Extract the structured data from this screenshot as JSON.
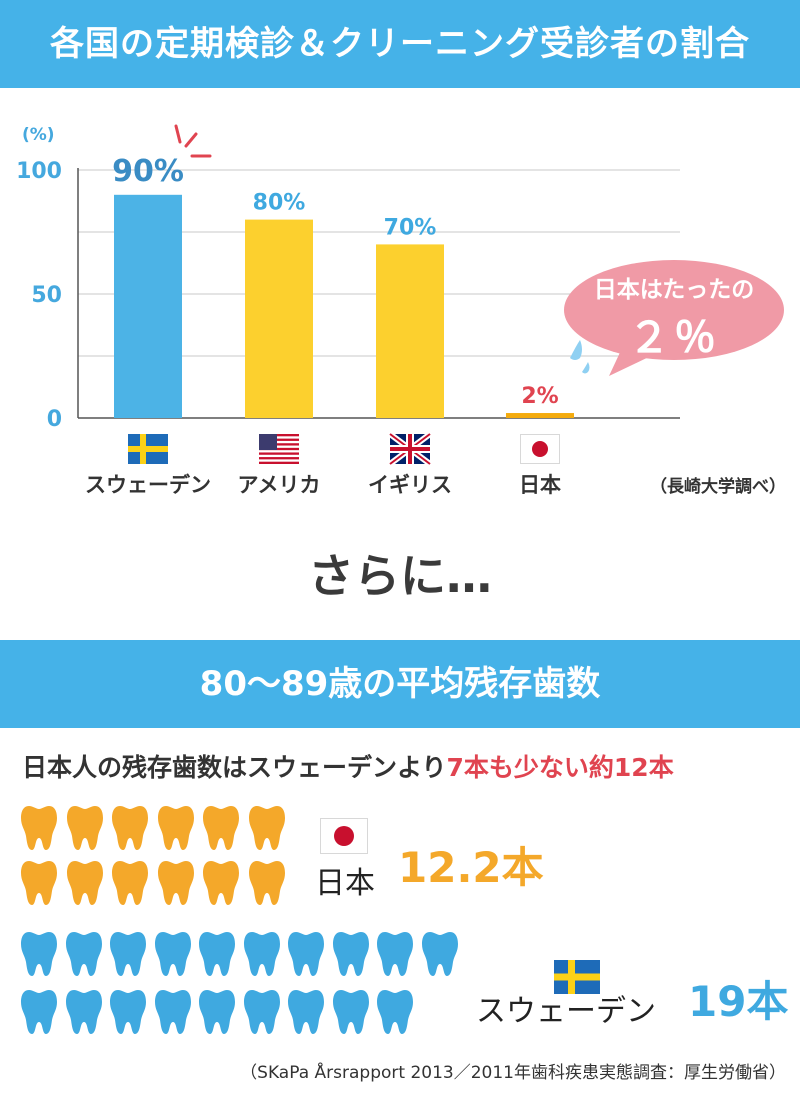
{
  "header": {
    "title": "各国の定期検診＆クリーニング受診者の割合"
  },
  "chart_data": {
    "type": "bar",
    "categories": [
      "スウェーデン",
      "アメリカ",
      "イギリス",
      "日本"
    ],
    "values": [
      90,
      80,
      70,
      2
    ],
    "data_labels": [
      "90%",
      "80%",
      "70%",
      "2%"
    ],
    "y_unit_label": "(%)",
    "yticks": [
      0,
      50,
      100
    ],
    "ylim": [
      0,
      100
    ],
    "grid": true,
    "bar_colors": [
      "#4cb3e6",
      "#fcd02e",
      "#fcd02e",
      "#f4ab0e"
    ],
    "label_colors": [
      "#3a8cc4",
      "#3fa9e0",
      "#3fa9e0",
      "#e04450"
    ],
    "flags": [
      "sweden-flag-icon",
      "usa-flag-icon",
      "uk-flag-icon",
      "japan-flag-icon"
    ],
    "source": "（長崎大学調べ）"
  },
  "callout": {
    "line1": "日本はたったの",
    "line2": "２％",
    "color": "#f09aa6"
  },
  "transition": "さらに…",
  "section2": {
    "title": "80〜89歳の平均残存歯数",
    "summary_prefix": "日本人の残存歯数はスウェーデンより",
    "summary_highlight": "7本も少ない約12本",
    "japan": {
      "name": "日本",
      "value_text": "12.2本",
      "value": 12.2,
      "tooth_icons": 12,
      "color": "#f4a82a"
    },
    "sweden": {
      "name": "スウェーデン",
      "value_text": "19本",
      "value": 19,
      "tooth_icons": 19,
      "color": "#3fa9e0"
    },
    "source": "（SKaPa Årsrapport 2013／2011年歯科疾患実態調査：厚生労働省）"
  }
}
